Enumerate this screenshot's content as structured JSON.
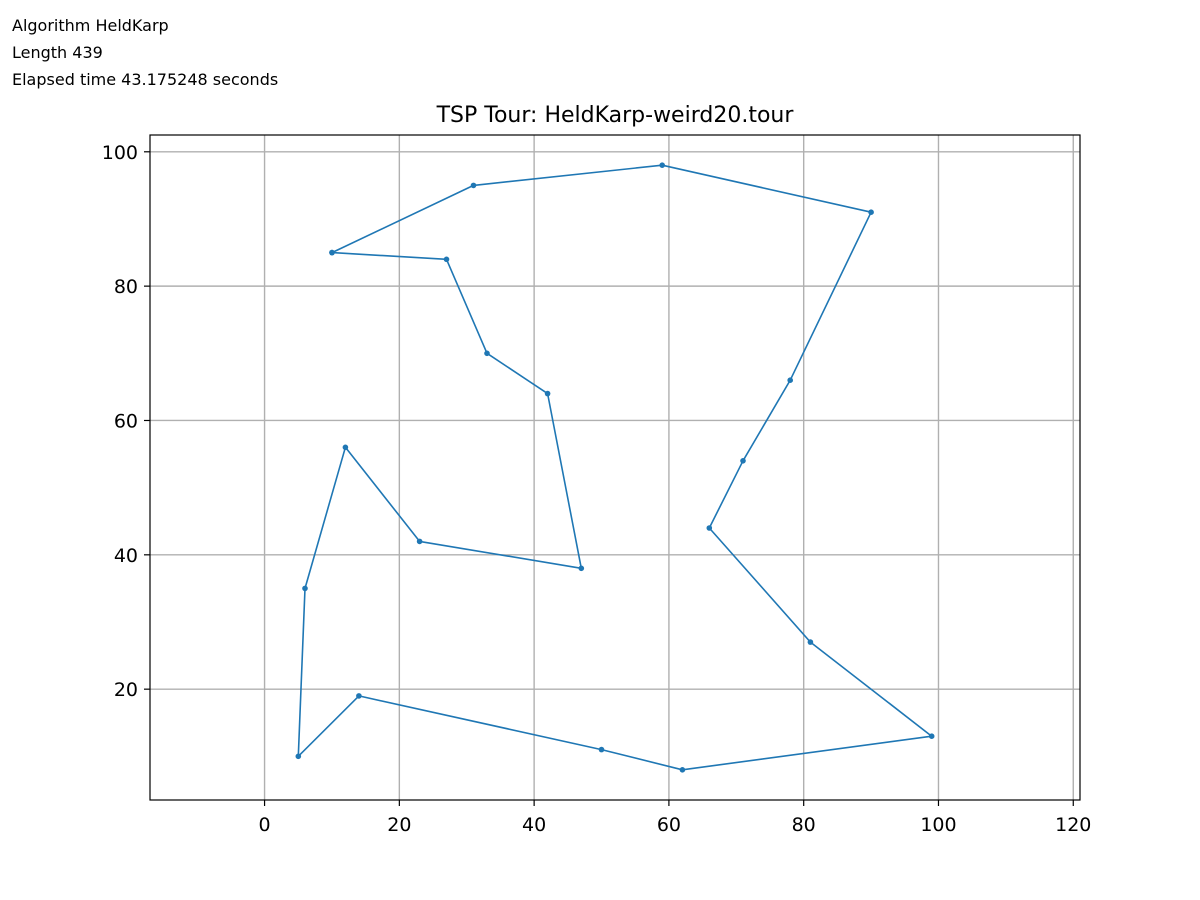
{
  "info": {
    "algorithm": "Algorithm HeldKarp",
    "length": "Length 439",
    "elapsed": "Elapsed time 43.175248 seconds"
  },
  "colors": {
    "line": "#1f77b4",
    "grid": "#b0b0b0",
    "axis": "#000000"
  },
  "chart_data": {
    "type": "line",
    "title": "TSP Tour: HeldKarp-weird20.tour",
    "xlabel": "",
    "ylabel": "",
    "xlim": [
      -17,
      121
    ],
    "ylim": [
      3.5,
      102.5
    ],
    "xticks": [
      0,
      20,
      40,
      60,
      80,
      100,
      120
    ],
    "yticks": [
      20,
      40,
      60,
      80,
      100
    ],
    "grid": true,
    "legend": "none",
    "series": [
      {
        "x": [
          10,
          31,
          59,
          90,
          78,
          71,
          66,
          81,
          99,
          62,
          50,
          14,
          5,
          6,
          12,
          23,
          47,
          42,
          33,
          27,
          10
        ],
        "y": [
          85,
          95,
          98,
          91,
          66,
          54,
          44,
          27,
          13,
          8,
          11,
          19,
          10,
          35,
          56,
          42,
          38,
          64,
          70,
          84,
          85
        ]
      }
    ]
  }
}
